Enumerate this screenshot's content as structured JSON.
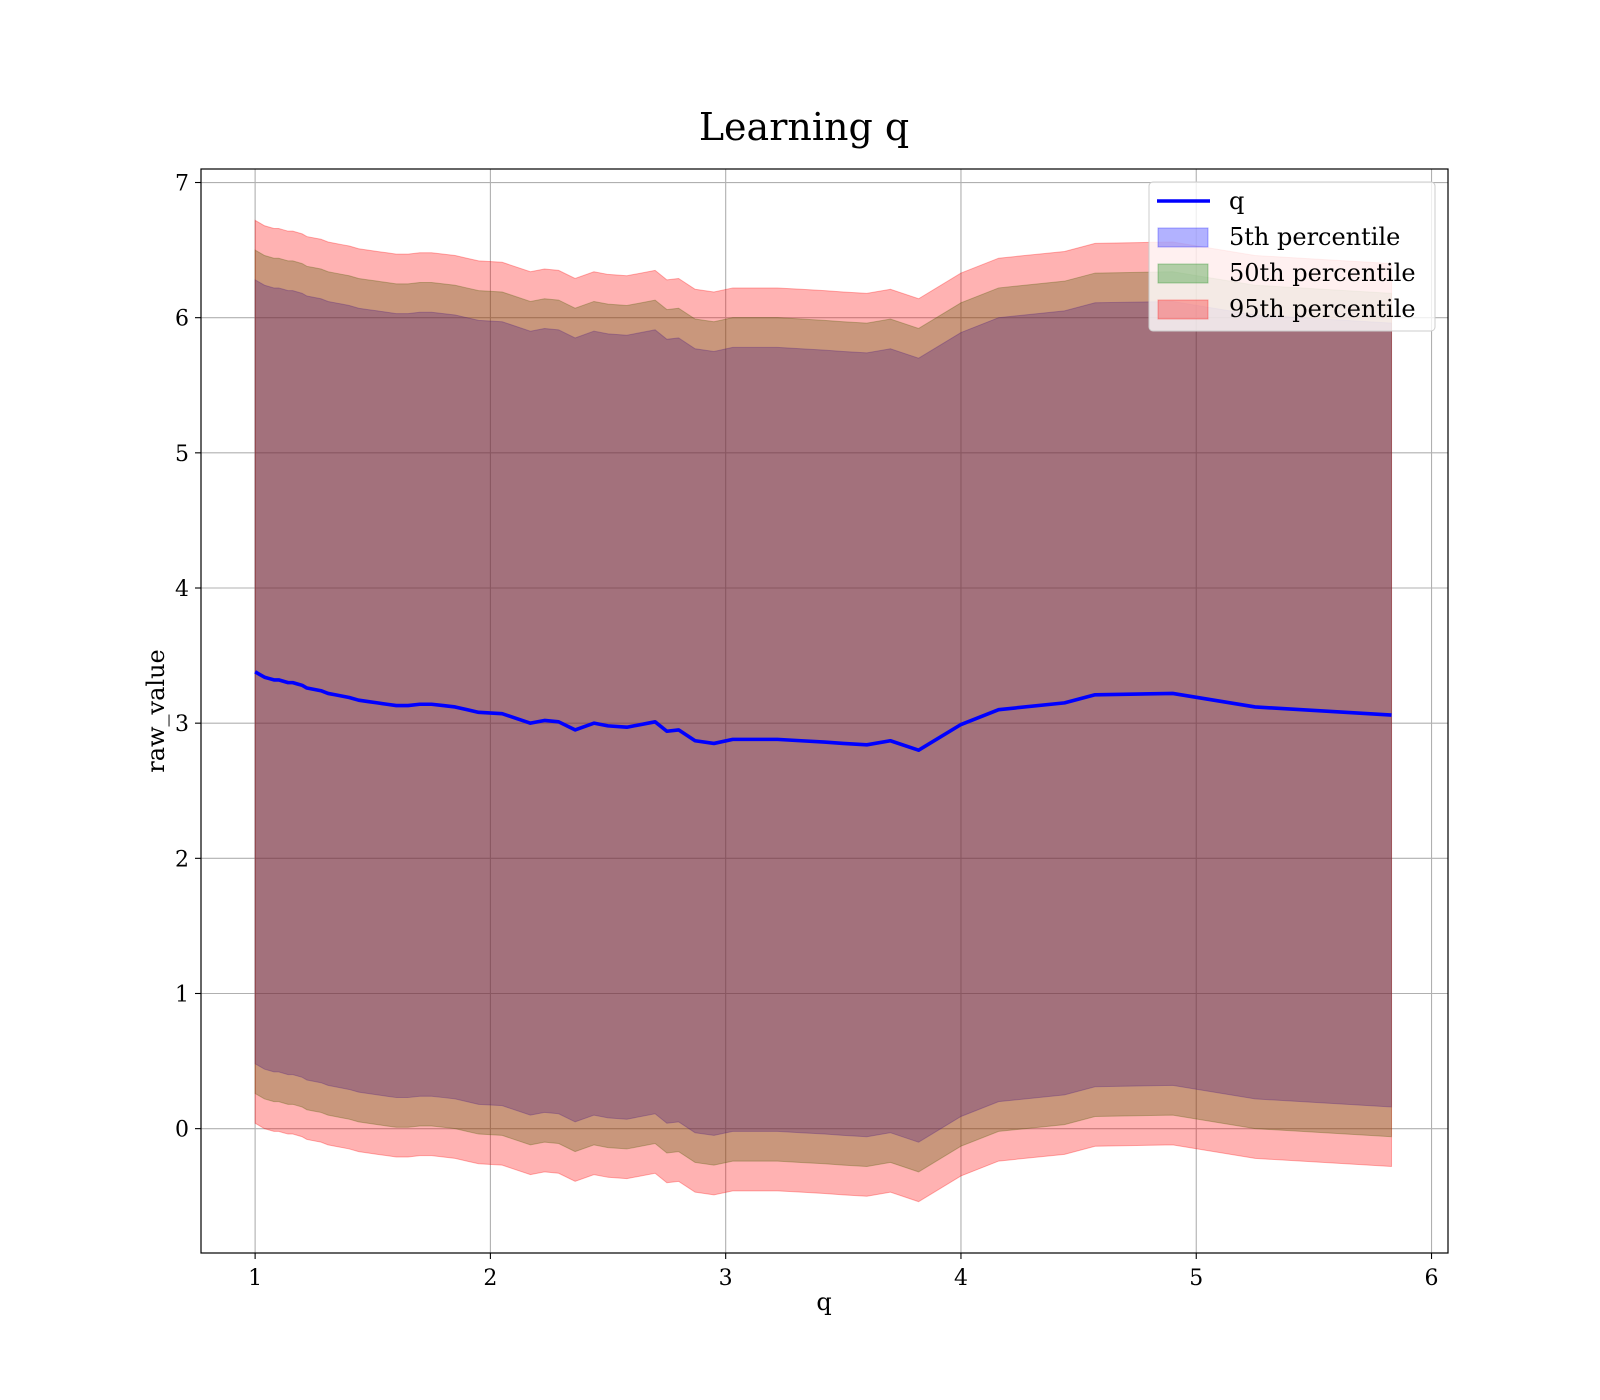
{
  "chart_data": {
    "type": "line",
    "title": "Learning q",
    "xlabel": "q",
    "ylabel": "raw_value",
    "xlim": [
      0.77,
      6.07
    ],
    "ylim": [
      -0.92,
      7.1
    ],
    "xticks": [
      "1",
      "2",
      "3",
      "4",
      "5",
      "6"
    ],
    "yticks": [
      "0",
      "1",
      "2",
      "3",
      "4",
      "5",
      "6",
      "7"
    ],
    "grid": true,
    "legend_position": "top-right",
    "line": {
      "name": "q",
      "color": "#0000ff",
      "x": [
        1.0,
        1.02,
        1.04,
        1.06,
        1.08,
        1.1,
        1.12,
        1.14,
        1.16,
        1.18,
        1.2,
        1.22,
        1.25,
        1.28,
        1.31,
        1.34,
        1.37,
        1.4,
        1.44,
        1.48,
        1.52,
        1.56,
        1.6,
        1.65,
        1.7,
        1.75,
        1.8,
        1.85,
        1.9,
        1.95,
        2.05,
        2.17,
        2.23,
        2.29,
        2.36,
        2.44,
        2.5,
        2.58,
        2.7,
        2.75,
        2.8,
        2.87,
        2.95,
        3.03,
        3.12,
        3.22,
        3.32,
        3.42,
        3.5,
        3.6,
        3.7,
        3.82,
        4.0,
        4.16,
        4.44,
        4.57,
        4.9,
        5.25,
        5.83
      ],
      "values": [
        3.38,
        3.36,
        3.34,
        3.33,
        3.32,
        3.32,
        3.31,
        3.3,
        3.3,
        3.29,
        3.28,
        3.26,
        3.25,
        3.24,
        3.22,
        3.21,
        3.2,
        3.19,
        3.17,
        3.16,
        3.15,
        3.14,
        3.13,
        3.13,
        3.14,
        3.14,
        3.13,
        3.12,
        3.1,
        3.08,
        3.07,
        3.0,
        3.02,
        3.01,
        2.95,
        3.0,
        2.98,
        2.97,
        3.01,
        2.94,
        2.95,
        2.87,
        2.85,
        2.88,
        2.88,
        2.88,
        2.87,
        2.86,
        2.85,
        2.84,
        2.87,
        2.8,
        2.99,
        3.1,
        3.15,
        3.21,
        3.22,
        3.12,
        3.06
      ]
    },
    "bands": [
      {
        "name": "5th percentile",
        "color": "#0000ff",
        "offset": 2.9
      },
      {
        "name": "50th percentile",
        "color": "#008000",
        "offset": 3.12
      },
      {
        "name": "95th percentile",
        "color": "#ff0000",
        "offset": 3.34
      }
    ]
  }
}
